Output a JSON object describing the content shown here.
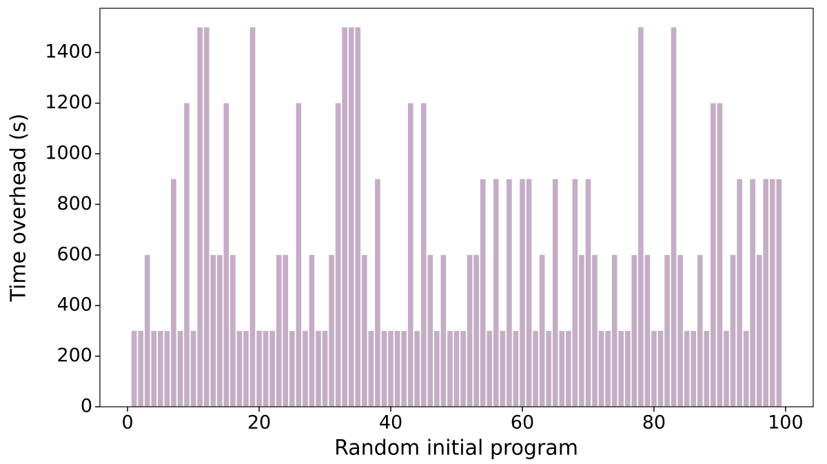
{
  "chart_data": {
    "type": "bar",
    "xlabel": "Random initial program",
    "ylabel": "Time overhead (s)",
    "x": [
      1,
      2,
      3,
      4,
      5,
      6,
      7,
      8,
      9,
      10,
      11,
      12,
      13,
      14,
      15,
      16,
      17,
      18,
      19,
      20,
      21,
      22,
      23,
      24,
      25,
      26,
      27,
      28,
      29,
      30,
      31,
      32,
      33,
      34,
      35,
      36,
      37,
      38,
      39,
      40,
      41,
      42,
      43,
      44,
      45,
      46,
      47,
      48,
      49,
      50,
      51,
      52,
      53,
      54,
      55,
      56,
      57,
      58,
      59,
      60,
      61,
      62,
      63,
      64,
      65,
      66,
      67,
      68,
      69,
      70,
      71,
      72,
      73,
      74,
      75,
      76,
      77,
      78,
      79,
      80,
      81,
      82,
      83,
      84,
      85,
      86,
      87,
      88,
      89,
      90,
      91,
      92,
      93,
      94,
      95,
      96,
      97,
      98,
      99
    ],
    "values": [
      300,
      300,
      600,
      300,
      300,
      300,
      900,
      300,
      1200,
      300,
      1500,
      1500,
      600,
      600,
      1200,
      600,
      300,
      300,
      1500,
      300,
      300,
      300,
      600,
      600,
      300,
      1200,
      300,
      600,
      300,
      300,
      600,
      1200,
      1500,
      1500,
      1500,
      600,
      300,
      900,
      300,
      300,
      300,
      300,
      1200,
      300,
      1200,
      600,
      300,
      600,
      300,
      300,
      300,
      600,
      600,
      900,
      300,
      900,
      300,
      900,
      300,
      900,
      900,
      300,
      600,
      300,
      900,
      300,
      300,
      900,
      600,
      900,
      600,
      300,
      300,
      600,
      300,
      300,
      600,
      1500,
      600,
      300,
      300,
      600,
      1500,
      600,
      300,
      300,
      600,
      300,
      1200,
      1200,
      300,
      600,
      900,
      300,
      900,
      600,
      900,
      900,
      900
    ],
    "color": "#c5adc5",
    "xlim": [
      -4.2,
      104.2
    ],
    "xticks": [
      0,
      20,
      40,
      60,
      80,
      100
    ],
    "ylim": [
      0,
      1575
    ],
    "yticks": [
      0,
      200,
      400,
      600,
      800,
      1000,
      1200,
      1400
    ],
    "grid": false
  }
}
